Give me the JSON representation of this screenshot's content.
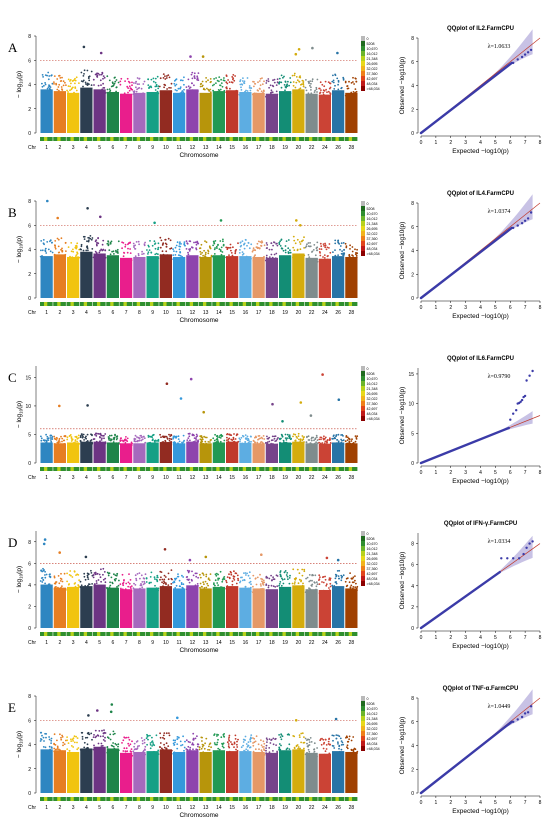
{
  "panels": [
    {
      "letter": "A",
      "manhattan": {
        "chart_data": {
          "type": "scatter",
          "xlabel": "Chromosome",
          "ylabel_text": "-log10(p)",
          "ylim": [
            0,
            8
          ],
          "yticks": [
            0,
            2,
            4,
            6,
            8
          ],
          "threshold": 6,
          "chromosomes": [
            "1",
            "2",
            "3",
            "4",
            "5",
            "6",
            "7",
            "8",
            "9",
            "10",
            "11",
            "12",
            "13",
            "14",
            "15",
            "16",
            "17",
            "18",
            "19",
            "20",
            "22",
            "24",
            "26",
            "28"
          ],
          "chr_label": "Chr",
          "baseline_max": [
            5.0,
            4.8,
            4.6,
            5.2,
            5.0,
            4.7,
            4.5,
            4.6,
            4.7,
            4.9,
            4.6,
            5.0,
            4.6,
            4.8,
            4.9,
            4.7,
            4.6,
            4.5,
            4.8,
            5.0,
            4.5,
            4.4,
            4.9,
            4.6
          ],
          "peaks": [
            {
              "chr": "4",
              "y": 7.1
            },
            {
              "chr": "5",
              "y": 6.6
            },
            {
              "chr": "12",
              "y": 6.3
            },
            {
              "chr": "13",
              "y": 6.3
            },
            {
              "chr": "20",
              "y": 6.9
            },
            {
              "chr": "20",
              "y": 6.5
            },
            {
              "chr": "22",
              "y": 7.0
            },
            {
              "chr": "26",
              "y": 6.6
            }
          ],
          "legend": [
            "0",
            "5208",
            "10,670",
            "16,012",
            "21,348",
            "26,695",
            "32,022",
            "37,360",
            "42,697",
            "48,034",
            ">48,034"
          ]
        }
      },
      "qq": {
        "title": "QQplot of IL2.FarmCPU",
        "lambda_label": "λ=1.0633",
        "chart_data": {
          "type": "scatter",
          "xlabel": "Expected  −log10(p)",
          "ylabel": "Observed  −log10(p)",
          "xlim": [
            0,
            8
          ],
          "ylim": [
            0,
            8
          ],
          "xticks": [
            0,
            1,
            2,
            3,
            4,
            5,
            6,
            7,
            8
          ],
          "yticks": [
            0,
            2,
            4,
            6,
            8
          ],
          "tail_points": [
            [
              6.2,
              5.9
            ],
            [
              6.5,
              6.2
            ],
            [
              6.8,
              6.4
            ],
            [
              7.0,
              6.6
            ],
            [
              7.2,
              6.8
            ],
            [
              7.4,
              7.0
            ]
          ]
        }
      }
    },
    {
      "letter": "B",
      "manhattan": {
        "chart_data": {
          "type": "scatter",
          "xlabel": "Chromosome",
          "ylabel_text": "-log10(p)",
          "ylim": [
            0,
            8
          ],
          "yticks": [
            0,
            2,
            4,
            6,
            8
          ],
          "threshold": 6,
          "chromosomes": [
            "1",
            "2",
            "3",
            "4",
            "5",
            "6",
            "7",
            "8",
            "9",
            "10",
            "11",
            "12",
            "13",
            "14",
            "15",
            "16",
            "17",
            "18",
            "19",
            "20",
            "22",
            "24",
            "26",
            "28"
          ],
          "chr_label": "Chr",
          "baseline_max": [
            4.8,
            5.0,
            4.7,
            5.3,
            5.1,
            4.9,
            4.6,
            4.7,
            4.8,
            5.0,
            4.7,
            4.9,
            4.7,
            4.9,
            4.8,
            4.8,
            4.7,
            4.6,
            4.9,
            5.1,
            4.6,
            4.5,
            4.8,
            4.7
          ],
          "peaks": [
            {
              "chr": "1",
              "y": 8.0
            },
            {
              "chr": "2",
              "y": 6.6
            },
            {
              "chr": "4",
              "y": 7.4
            },
            {
              "chr": "5",
              "y": 6.7
            },
            {
              "chr": "9",
              "y": 6.2
            },
            {
              "chr": "14",
              "y": 6.4
            },
            {
              "chr": "20",
              "y": 6.4
            },
            {
              "chr": "20",
              "y": 6.0
            }
          ],
          "legend": [
            "0",
            "5208",
            "10,670",
            "16,012",
            "21,348",
            "26,695",
            "32,022",
            "37,360",
            "42,697",
            "48,034",
            ">48,034"
          ]
        }
      },
      "qq": {
        "title": "QQplot of IL4.FarmCPU",
        "lambda_label": "λ=1.0374",
        "chart_data": {
          "type": "scatter",
          "xlabel": "Expected  −log10(p)",
          "ylabel": "Observed  −log10(p)",
          "xlim": [
            0,
            8
          ],
          "ylim": [
            0,
            8
          ],
          "xticks": [
            0,
            1,
            2,
            3,
            4,
            5,
            6,
            7,
            8
          ],
          "yticks": [
            0,
            2,
            4,
            6,
            8
          ],
          "tail_points": [
            [
              6.2,
              5.9
            ],
            [
              6.5,
              6.1
            ],
            [
              6.8,
              6.3
            ],
            [
              7.0,
              6.5
            ],
            [
              7.2,
              6.7
            ],
            [
              7.4,
              7.2
            ]
          ]
        }
      }
    },
    {
      "letter": "C",
      "manhattan": {
        "chart_data": {
          "type": "scatter",
          "xlabel": "",
          "ylabel_text": "-log10(p)",
          "ylim": [
            0,
            17
          ],
          "yticks": [
            0,
            5,
            10,
            15
          ],
          "threshold": 6,
          "chromosomes": [
            "1",
            "2",
            "3",
            "4",
            "5",
            "6",
            "7",
            "8",
            "9",
            "10",
            "11",
            "12",
            "13",
            "14",
            "15",
            "16",
            "17",
            "18",
            "19",
            "20",
            "22",
            "24",
            "26",
            "28"
          ],
          "chr_label": "Chr",
          "baseline_max": [
            5.0,
            4.8,
            5.0,
            5.2,
            5.2,
            5.0,
            4.8,
            4.8,
            5.0,
            5.1,
            4.8,
            5.2,
            4.8,
            5.0,
            5.2,
            4.9,
            4.8,
            4.7,
            5.0,
            5.2,
            4.8,
            4.7,
            5.0,
            4.8
          ],
          "peaks": [
            {
              "chr": "2",
              "y": 10.0
            },
            {
              "chr": "4",
              "y": 10.1
            },
            {
              "chr": "10",
              "y": 13.9
            },
            {
              "chr": "11",
              "y": 11.3
            },
            {
              "chr": "12",
              "y": 14.7
            },
            {
              "chr": "13",
              "y": 8.9
            },
            {
              "chr": "18",
              "y": 10.3
            },
            {
              "chr": "19",
              "y": 7.3
            },
            {
              "chr": "20",
              "y": 10.6
            },
            {
              "chr": "22",
              "y": 8.3
            },
            {
              "chr": "24",
              "y": 15.5
            },
            {
              "chr": "26",
              "y": 11.1
            }
          ],
          "legend": [
            "0",
            "5208",
            "10,670",
            "16,012",
            "21,348",
            "26,695",
            "32,022",
            "37,360",
            "42,697",
            "48,034",
            ">48,034"
          ]
        }
      },
      "qq": {
        "title": "QQplot of IL6.FarmCPU",
        "lambda_label": "λ=0.9790",
        "chart_data": {
          "type": "scatter",
          "xlabel": "Expected  −log10(p)",
          "ylabel": "Observed  −log10(p)",
          "xlim": [
            0,
            8
          ],
          "ylim": [
            0,
            16
          ],
          "xticks": [
            0,
            1,
            2,
            3,
            4,
            5,
            6,
            7,
            8
          ],
          "yticks": [
            0,
            5,
            10,
            15
          ],
          "tail_points": [
            [
              6.0,
              7.3
            ],
            [
              6.2,
              8.3
            ],
            [
              6.4,
              8.9
            ],
            [
              6.5,
              10.0
            ],
            [
              6.6,
              10.1
            ],
            [
              6.7,
              10.3
            ],
            [
              6.8,
              10.6
            ],
            [
              6.9,
              11.1
            ],
            [
              7.0,
              11.3
            ],
            [
              7.1,
              13.9
            ],
            [
              7.3,
              14.7
            ],
            [
              7.5,
              15.5
            ]
          ]
        }
      }
    },
    {
      "letter": "D",
      "manhattan": {
        "chart_data": {
          "type": "scatter",
          "xlabel": "Chromosome",
          "ylabel_text": "-log10(p)",
          "ylim": [
            0,
            9
          ],
          "yticks": [
            0,
            2,
            4,
            6,
            8
          ],
          "threshold": 6,
          "chromosomes": [
            "1",
            "2",
            "3",
            "4",
            "5",
            "6",
            "7",
            "8",
            "9",
            "10",
            "11",
            "12",
            "13",
            "14",
            "15",
            "16",
            "17",
            "18",
            "19",
            "20",
            "22",
            "24",
            "26",
            "28"
          ],
          "chr_label": "Chr",
          "baseline_max": [
            5.6,
            5.2,
            5.3,
            5.4,
            5.6,
            5.2,
            5.0,
            5.1,
            5.2,
            5.4,
            5.1,
            5.5,
            5.1,
            5.3,
            5.4,
            5.2,
            5.1,
            5.0,
            5.3,
            5.5,
            5.0,
            4.9,
            5.4,
            5.1
          ],
          "peaks": [
            {
              "chr": "1",
              "y": 8.2
            },
            {
              "chr": "1",
              "y": 7.8
            },
            {
              "chr": "2",
              "y": 7.0
            },
            {
              "chr": "4",
              "y": 6.6
            },
            {
              "chr": "10",
              "y": 7.3
            },
            {
              "chr": "12",
              "y": 6.3
            },
            {
              "chr": "13",
              "y": 6.6
            },
            {
              "chr": "17",
              "y": 6.8
            },
            {
              "chr": "24",
              "y": 6.5
            },
            {
              "chr": "26",
              "y": 6.3
            }
          ],
          "legend": [
            "0",
            "5208",
            "10,670",
            "16,012",
            "21,348",
            "26,695",
            "32,022",
            "37,360",
            "42,697",
            "48,034",
            ">48,034"
          ]
        }
      },
      "qq": {
        "title": "QQplot of IFN-γ.FarmCPU",
        "lambda_label": "λ=1.0334",
        "chart_data": {
          "type": "scatter",
          "xlabel": "Expected  −log10(p)",
          "ylabel": "Observed  −log10(p)",
          "xlim": [
            0,
            8
          ],
          "ylim": [
            0,
            9
          ],
          "xticks": [
            0,
            1,
            2,
            3,
            4,
            5,
            6,
            7,
            8
          ],
          "yticks": [
            0,
            2,
            4,
            6,
            8
          ],
          "tail_points": [
            [
              5.4,
              6.6
            ],
            [
              5.8,
              6.6
            ],
            [
              6.2,
              6.6
            ],
            [
              6.6,
              6.6
            ],
            [
              6.9,
              7.0
            ],
            [
              7.1,
              7.6
            ],
            [
              7.3,
              8.0
            ],
            [
              7.5,
              8.2
            ]
          ]
        }
      }
    },
    {
      "letter": "E",
      "manhattan": {
        "chart_data": {
          "type": "scatter",
          "xlabel": "Chromosome",
          "ylabel_text": "-log10(p)",
          "ylim": [
            0,
            8
          ],
          "yticks": [
            0,
            2,
            4,
            6,
            8
          ],
          "threshold": 6,
          "chromosomes": [
            "1",
            "2",
            "3",
            "4",
            "5",
            "6",
            "7",
            "8",
            "9",
            "10",
            "11",
            "12",
            "13",
            "14",
            "15",
            "16",
            "17",
            "18",
            "19",
            "20",
            "22",
            "24",
            "26",
            "28"
          ],
          "chr_label": "Chr",
          "baseline_max": [
            5.0,
            4.9,
            4.7,
            5.1,
            5.3,
            5.1,
            4.6,
            4.7,
            4.8,
            5.0,
            4.7,
            4.9,
            4.7,
            4.9,
            4.8,
            4.8,
            4.7,
            4.6,
            4.9,
            5.0,
            4.6,
            4.5,
            4.8,
            4.7
          ],
          "peaks": [
            {
              "chr": "4",
              "y": 6.4
            },
            {
              "chr": "5",
              "y": 6.8
            },
            {
              "chr": "6",
              "y": 7.3
            },
            {
              "chr": "6",
              "y": 6.7
            },
            {
              "chr": "11",
              "y": 6.2
            },
            {
              "chr": "20",
              "y": 6.0
            },
            {
              "chr": "26",
              "y": 6.1
            }
          ],
          "legend": [
            "0",
            "5208",
            "10,670",
            "16,012",
            "21,348",
            "26,695",
            "32,022",
            "37,360",
            "42,697",
            "48,034",
            ">48,034"
          ]
        }
      },
      "qq": {
        "title": "QQplot of TNF-α.FarmCPU",
        "lambda_label": "λ=1.0449",
        "chart_data": {
          "type": "scatter",
          "xlabel": "Expected  −log10(p)",
          "ylabel": "Observed  −log10(p)",
          "xlim": [
            0,
            8
          ],
          "ylim": [
            0,
            8
          ],
          "xticks": [
            0,
            1,
            2,
            3,
            4,
            5,
            6,
            7,
            8
          ],
          "yticks": [
            0,
            2,
            4,
            6,
            8
          ],
          "tail_points": [
            [
              6.2,
              6.0
            ],
            [
              6.5,
              6.2
            ],
            [
              6.8,
              6.4
            ],
            [
              7.0,
              6.7
            ],
            [
              7.2,
              6.8
            ],
            [
              7.4,
              7.3
            ]
          ]
        }
      }
    }
  ],
  "colors": {
    "chromosome_palette": [
      "#2e86c1",
      "#e67e22",
      "#f1c40f",
      "#2c3e50",
      "#6c3483",
      "#1e8449",
      "#e91e8c",
      "#a569bd",
      "#16a085",
      "#922b21",
      "#3498db",
      "#8e44ad",
      "#b7950b",
      "#229954",
      "#c0392b",
      "#5dade2",
      "#e59866",
      "#76448a",
      "#138d75",
      "#d4ac0d",
      "#7f8c8d",
      "#cb4335",
      "#2874a6",
      "#a04000"
    ],
    "qq_points": "#3b3ba8",
    "qq_line": "#c0392b",
    "qq_band": "#9b8fd0",
    "threshold": "#c0392b",
    "legend_ramp": [
      "#b9b9b9",
      "#1e6b1e",
      "#2f8f2f",
      "#6bb52a",
      "#b7d21c",
      "#e8d81a",
      "#f2b31c",
      "#ef7f1a",
      "#e2451c",
      "#c01a1a",
      "#8b0000"
    ]
  }
}
